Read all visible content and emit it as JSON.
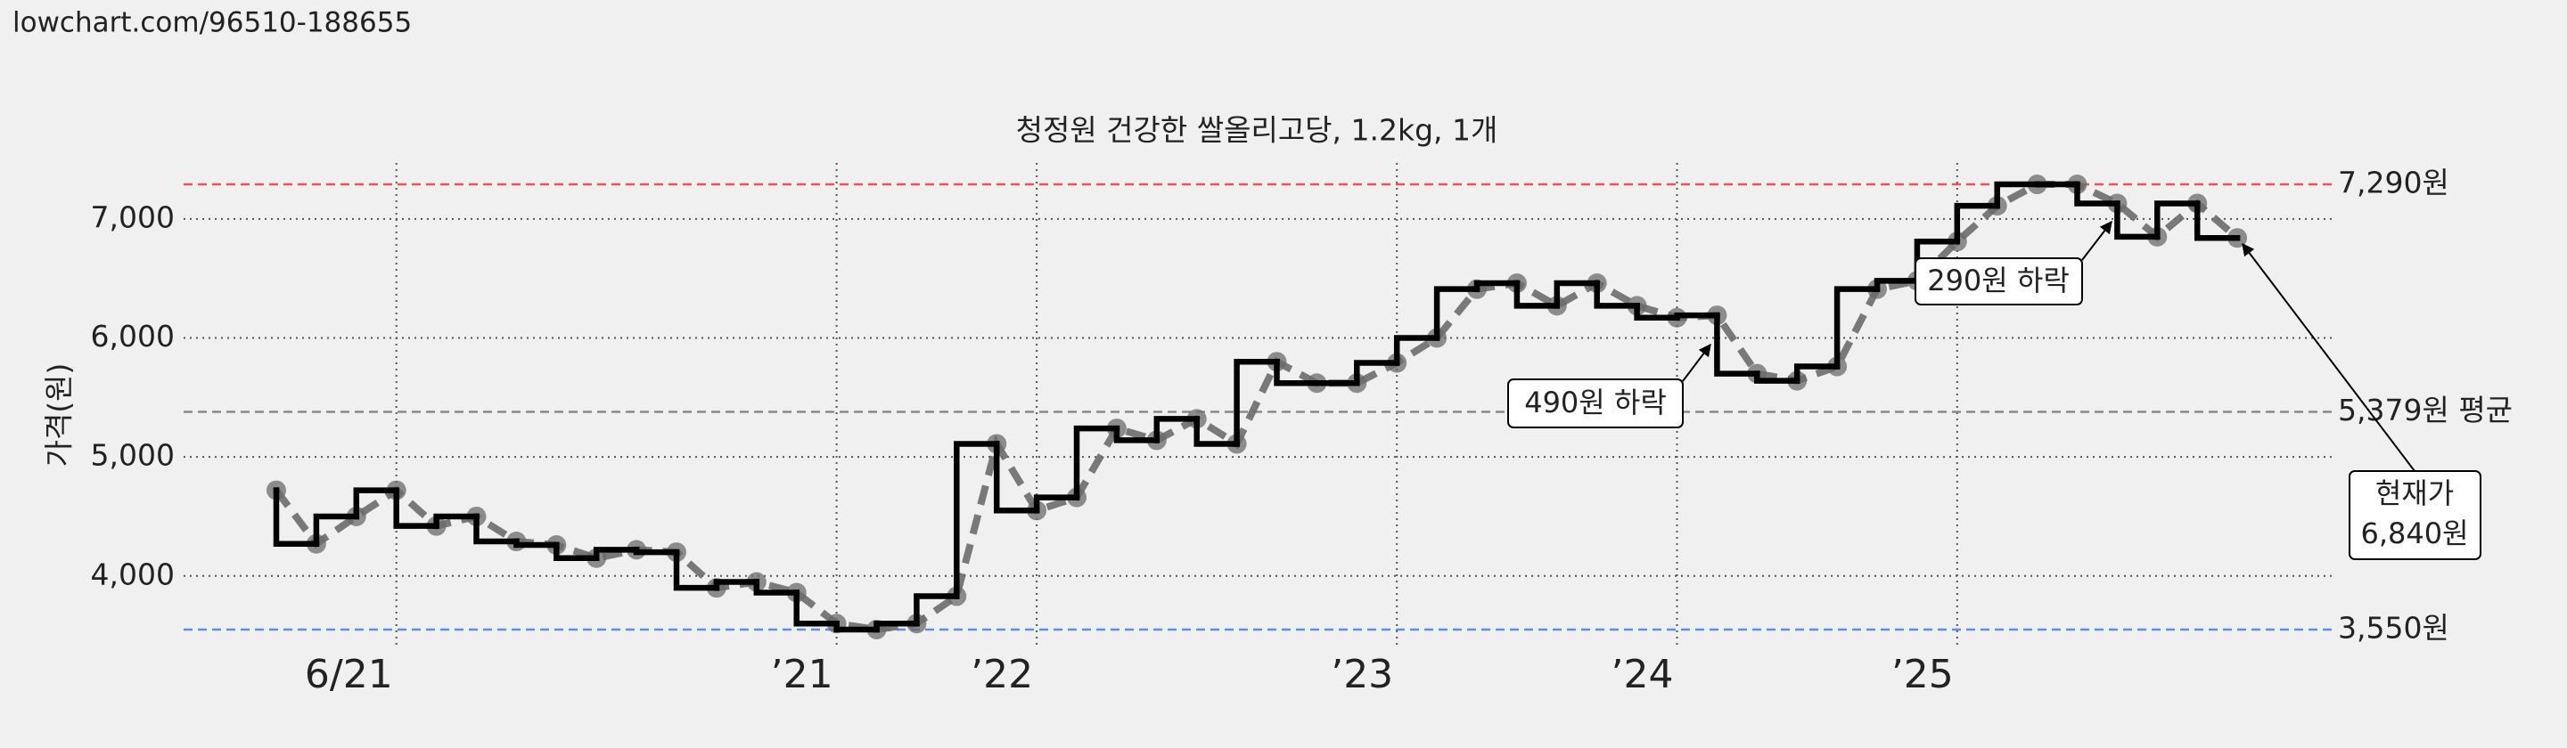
{
  "source": "lowchart.com/96510-188655",
  "chart_data": {
    "type": "line",
    "title": "청정원 건강한 쌀올리고당, 1.2kg, 1개",
    "y_label": "가격(원)",
    "categories": [
      null,
      null,
      null,
      "6/21",
      null,
      null,
      null,
      null,
      null,
      null,
      null,
      null,
      null,
      null,
      "’21",
      null,
      null,
      null,
      null,
      "’22",
      null,
      null,
      null,
      null,
      null,
      null,
      null,
      null,
      "’23",
      null,
      null,
      null,
      null,
      null,
      null,
      "’24",
      null,
      null,
      null,
      null,
      null,
      null,
      "’25",
      null,
      null,
      null,
      null,
      null,
      null,
      null
    ],
    "values": [
      4720,
      4270,
      4500,
      4720,
      4420,
      4500,
      4290,
      4260,
      4150,
      4220,
      4200,
      3900,
      3950,
      3860,
      3600,
      3550,
      3600,
      3830,
      5110,
      4550,
      4660,
      5240,
      5140,
      5320,
      5110,
      5800,
      5620,
      5620,
      5790,
      6000,
      6410,
      6460,
      6270,
      6460,
      6270,
      6170,
      6190,
      5700,
      5640,
      5760,
      6410,
      6480,
      6810,
      7110,
      7290,
      7290,
      7130,
      6850,
      7130,
      6840
    ],
    "color": "#6b6b6b",
    "step_color": "#000000",
    "ylim": [
      3400,
      7470
    ],
    "yticks": [
      {
        "value": 4000,
        "label": "4,000"
      },
      {
        "value": 5000,
        "label": "5,000"
      },
      {
        "value": 6000,
        "label": "6,000"
      },
      {
        "value": 7000,
        "label": "7,000"
      }
    ],
    "grid": true,
    "reference_lines": [
      {
        "value": 7290,
        "label": "7,290원",
        "color": "#f0505a"
      },
      {
        "value": 5379,
        "label": "5,379원 평균",
        "color": "#8a8a8a"
      },
      {
        "value": 3550,
        "label": "3,550원",
        "color": "#5b8def"
      }
    ],
    "annotations": [
      "490원 하락",
      "290원 하락",
      "현재가",
      "6,840원"
    ]
  }
}
